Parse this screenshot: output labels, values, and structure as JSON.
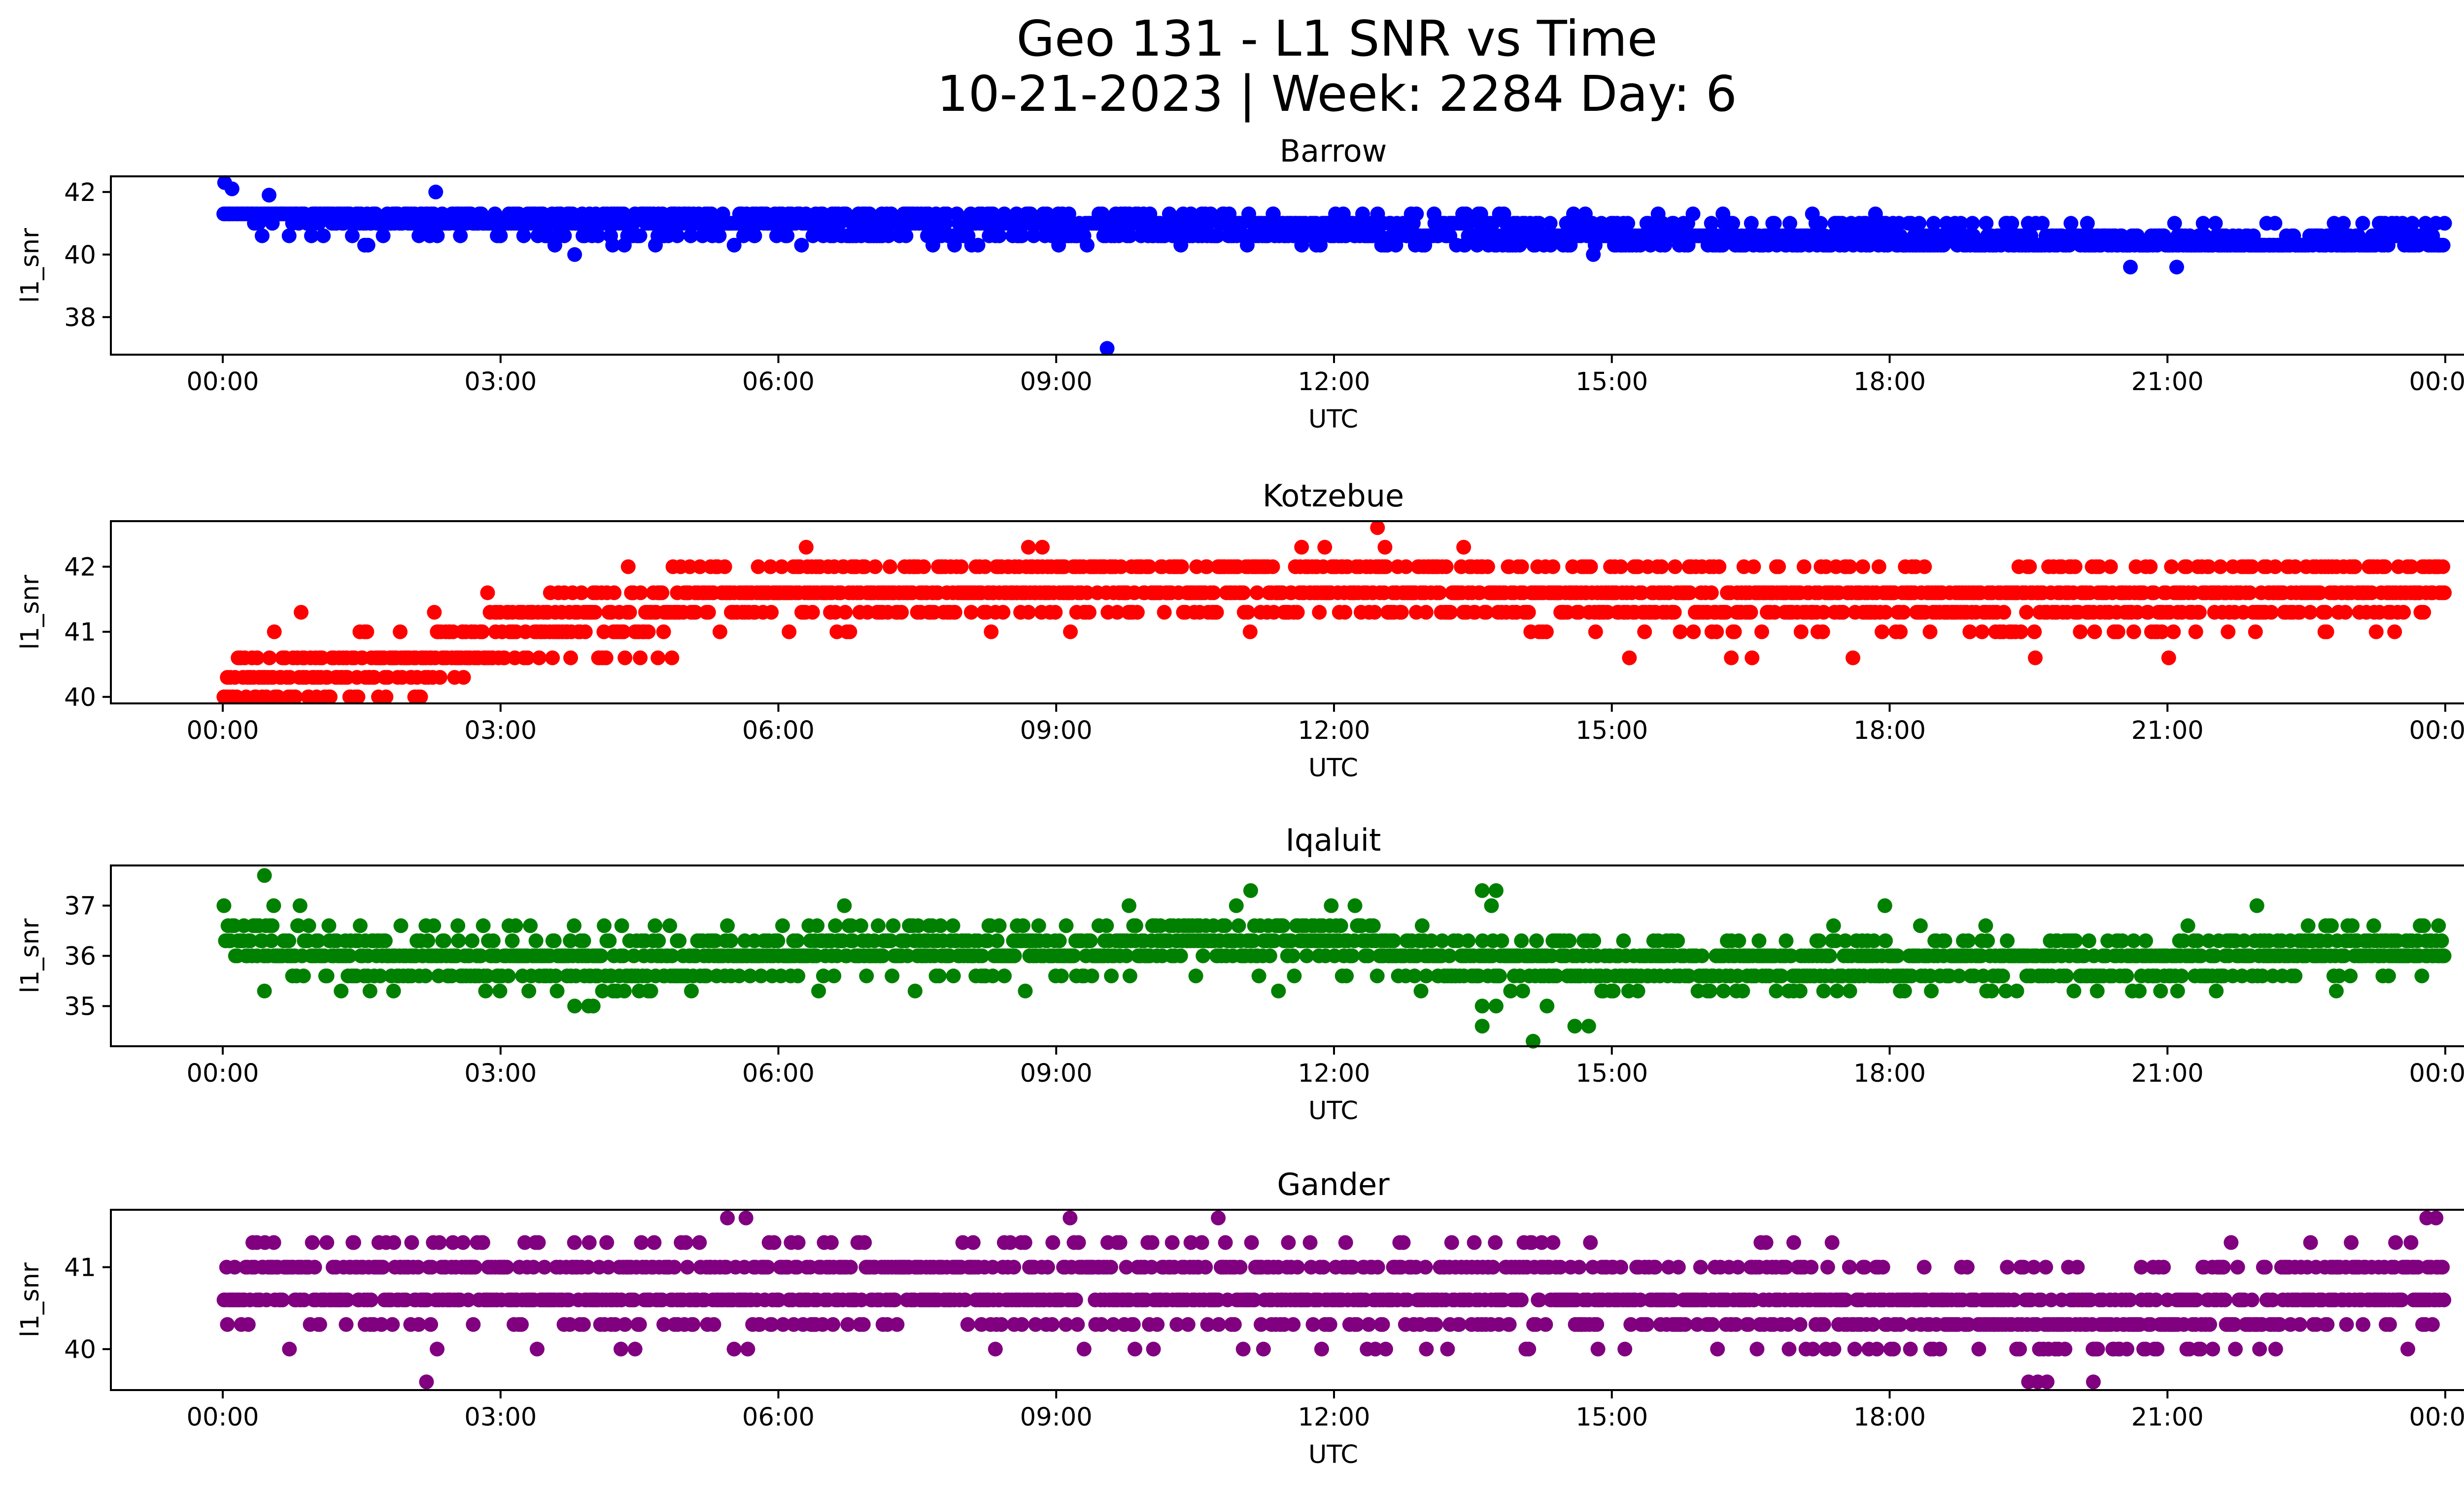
{
  "figure": {
    "title_line1": "Geo 131 - L1 SNR vs Time",
    "title_line2": "10-21-2023 | Week: 2284 Day: 6"
  },
  "chart_data": [
    {
      "type": "scatter",
      "title": "Barrow",
      "xlabel": "UTC",
      "ylabel": "l1_snr",
      "color": "#0000ff",
      "x_range_hours": [
        0,
        24
      ],
      "x_ticks": [
        "00:00",
        "03:00",
        "06:00",
        "09:00",
        "12:00",
        "15:00",
        "18:00",
        "21:00",
        "00:00"
      ],
      "ylim": [
        36.8,
        42.5
      ],
      "y_ticks": [
        38,
        40,
        42
      ],
      "grid": false,
      "series": [
        {
          "levels": [
            40.3,
            40.6,
            41.0,
            41.3
          ],
          "trend": [
            [
              0.0,
              41.65
            ],
            [
              0.5,
              41.5
            ],
            [
              1.0,
              41.2
            ],
            [
              2.0,
              41.1
            ],
            [
              3.0,
              41.05
            ],
            [
              6.0,
              41.0
            ],
            [
              9.0,
              40.95
            ],
            [
              12.0,
              40.8
            ],
            [
              15.0,
              40.65
            ],
            [
              18.0,
              40.55
            ],
            [
              21.0,
              40.3
            ],
            [
              24.0,
              40.45
            ]
          ],
          "outliers": [
            [
              0.02,
              42.3
            ],
            [
              0.1,
              42.1
            ],
            [
              0.5,
              41.9
            ],
            [
              2.3,
              42.0
            ],
            [
              3.8,
              40.0
            ],
            [
              9.55,
              37.0
            ],
            [
              14.8,
              40.0
            ],
            [
              20.6,
              39.6
            ],
            [
              21.1,
              39.6
            ],
            [
              22.9,
              41.0
            ],
            [
              16.2,
              41.3
            ],
            [
              10.8,
              41.3
            ]
          ]
        }
      ]
    },
    {
      "type": "scatter",
      "title": "Kotzebue",
      "xlabel": "UTC",
      "ylabel": "l1_snr",
      "color": "#ff0000",
      "x_range_hours": [
        0,
        24
      ],
      "x_ticks": [
        "00:00",
        "03:00",
        "06:00",
        "09:00",
        "12:00",
        "15:00",
        "18:00",
        "21:00",
        "00:00"
      ],
      "ylim": [
        39.9,
        42.7
      ],
      "y_ticks": [
        40,
        41,
        42
      ],
      "grid": false,
      "series": [
        {
          "levels": [
            40.0,
            40.3,
            40.6,
            41.0,
            41.3,
            41.6,
            42.0
          ],
          "trend": [
            [
              0.0,
              40.25
            ],
            [
              1.0,
              40.3
            ],
            [
              2.0,
              40.45
            ],
            [
              2.5,
              40.85
            ],
            [
              3.5,
              41.1
            ],
            [
              4.5,
              41.25
            ],
            [
              5.0,
              41.45
            ],
            [
              6.0,
              41.6
            ],
            [
              9.0,
              41.7
            ],
            [
              12.0,
              41.7
            ],
            [
              15.0,
              41.5
            ],
            [
              18.0,
              41.45
            ],
            [
              21.0,
              41.5
            ],
            [
              24.0,
              41.75
            ]
          ],
          "outliers": [
            [
              6.3,
              42.3
            ],
            [
              8.7,
              42.3
            ],
            [
              8.85,
              42.3
            ],
            [
              11.65,
              42.3
            ],
            [
              11.9,
              42.3
            ],
            [
              12.47,
              42.6
            ],
            [
              12.55,
              42.3
            ],
            [
              13.4,
              42.3
            ],
            [
              14.2,
              42.0
            ],
            [
              16.1,
              42.0
            ],
            [
              2.6,
              40.3
            ],
            [
              4.7,
              40.6
            ],
            [
              4.85,
              40.6
            ],
            [
              22.7,
              41.0
            ]
          ]
        }
      ]
    },
    {
      "type": "scatter",
      "title": "Iqaluit",
      "xlabel": "UTC",
      "ylabel": "l1_snr",
      "color": "#008000",
      "x_range_hours": [
        0,
        24
      ],
      "x_ticks": [
        "00:00",
        "03:00",
        "06:00",
        "09:00",
        "12:00",
        "15:00",
        "18:00",
        "21:00",
        "00:00"
      ],
      "ylim": [
        34.2,
        37.8
      ],
      "y_ticks": [
        35,
        36,
        37
      ],
      "grid": false,
      "series": [
        {
          "levels": [
            35.3,
            35.6,
            36.0,
            36.3,
            36.6,
            37.0
          ],
          "trend": [
            [
              0.0,
              36.25
            ],
            [
              1.0,
              36.1
            ],
            [
              2.0,
              36.0
            ],
            [
              3.0,
              35.9
            ],
            [
              4.0,
              35.8
            ],
            [
              5.0,
              35.9
            ],
            [
              6.0,
              36.1
            ],
            [
              7.0,
              36.2
            ],
            [
              9.0,
              36.05
            ],
            [
              10.5,
              36.3
            ],
            [
              12.0,
              36.4
            ],
            [
              13.0,
              35.9
            ],
            [
              15.0,
              35.8
            ],
            [
              18.0,
              35.9
            ],
            [
              21.0,
              35.95
            ],
            [
              23.0,
              36.05
            ],
            [
              24.0,
              36.25
            ]
          ],
          "outliers": [
            [
              0.45,
              37.6
            ],
            [
              0.55,
              37.0
            ],
            [
              0.45,
              35.3
            ],
            [
              3.8,
              35.0
            ],
            [
              3.95,
              35.0
            ],
            [
              4.0,
              35.0
            ],
            [
              11.1,
              37.3
            ],
            [
              13.6,
              37.3
            ],
            [
              13.75,
              37.3
            ],
            [
              13.7,
              37.0
            ],
            [
              13.6,
              35.0
            ],
            [
              13.75,
              35.0
            ],
            [
              13.6,
              34.6
            ],
            [
              14.15,
              34.3
            ],
            [
              14.3,
              35.0
            ],
            [
              14.6,
              34.6
            ],
            [
              14.75,
              34.6
            ],
            [
              11.4,
              35.3
            ]
          ]
        }
      ]
    },
    {
      "type": "scatter",
      "title": "Gander",
      "xlabel": "UTC",
      "ylabel": "l1_snr",
      "color": "#800080",
      "x_range_hours": [
        0,
        24
      ],
      "x_ticks": [
        "00:00",
        "03:00",
        "06:00",
        "09:00",
        "12:00",
        "15:00",
        "18:00",
        "21:00",
        "00:00"
      ],
      "ylim": [
        39.5,
        41.7
      ],
      "y_ticks": [
        40,
        41
      ],
      "grid": false,
      "series": [
        {
          "levels": [
            40.0,
            40.3,
            40.6,
            41.0,
            41.3
          ],
          "trend": [
            [
              0.0,
              40.75
            ],
            [
              6.0,
              40.75
            ],
            [
              9.0,
              40.72
            ],
            [
              12.0,
              40.65
            ],
            [
              15.0,
              40.65
            ],
            [
              18.0,
              40.5
            ],
            [
              20.0,
              40.4
            ],
            [
              21.0,
              40.45
            ],
            [
              22.0,
              40.55
            ],
            [
              24.0,
              40.8
            ]
          ],
          "outliers": [
            [
              2.2,
              39.6
            ],
            [
              19.5,
              39.6
            ],
            [
              19.6,
              39.6
            ],
            [
              19.7,
              39.6
            ],
            [
              20.2,
              39.6
            ],
            [
              5.45,
              41.6
            ],
            [
              5.65,
              41.6
            ],
            [
              9.15,
              41.6
            ],
            [
              10.75,
              41.6
            ],
            [
              23.8,
              41.6
            ],
            [
              23.9,
              41.6
            ],
            [
              10.05,
              40.0
            ],
            [
              4.3,
              40.0
            ],
            [
              14.85,
              40.0
            ]
          ]
        }
      ]
    }
  ]
}
